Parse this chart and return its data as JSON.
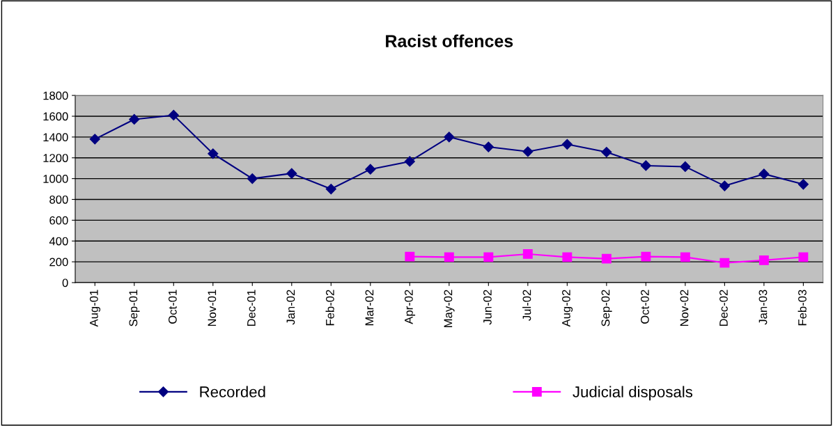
{
  "chart_data": {
    "type": "line",
    "title": "Racist offences",
    "categories": [
      "Aug-01",
      "Sep-01",
      "Oct-01",
      "Nov-01",
      "Dec-01",
      "Jan-02",
      "Feb-02",
      "Mar-02",
      "Apr-02",
      "May-02",
      "Jun-02",
      "Jul-02",
      "Aug-02",
      "Sep-02",
      "Oct-02",
      "Nov-02",
      "Dec-02",
      "Jan-03",
      "Feb-03"
    ],
    "series": [
      {
        "name": "Recorded",
        "color": "#000080",
        "marker": "diamond",
        "values": [
          1380,
          1570,
          1610,
          1240,
          1000,
          1050,
          900,
          1090,
          1165,
          1400,
          1305,
          1260,
          1330,
          1255,
          1125,
          1115,
          930,
          1045,
          945
        ]
      },
      {
        "name": "Judicial disposals",
        "color": "#ff00ff",
        "marker": "square",
        "values": [
          null,
          null,
          null,
          null,
          null,
          null,
          null,
          null,
          250,
          245,
          245,
          275,
          245,
          230,
          250,
          245,
          190,
          215,
          245
        ]
      }
    ],
    "ylim": [
      0,
      1800
    ],
    "yticks": [
      0,
      200,
      400,
      600,
      800,
      1000,
      1200,
      1400,
      1600,
      1800
    ],
    "grid": "y",
    "legend": "bottom"
  }
}
